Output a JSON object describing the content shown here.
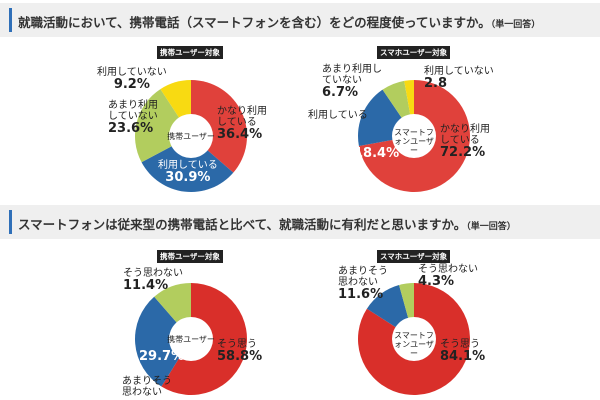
{
  "sections": [
    {
      "title": "就職活動において、携帯電話（スマートフォンを含む）をどの程度使っていますか。",
      "note": "（単一回答）"
    },
    {
      "title": "スマートフォンは従来型の携帯電話と比べて、就職活動に有利だと思いますか。",
      "note": "（単一回答）"
    }
  ],
  "chart_data": [
    {
      "type": "pie",
      "badge": "携帯ユーザー対象",
      "center_label": "携帯ユーザー",
      "slices": [
        {
          "label": "かなり利用している",
          "value": 36.4,
          "display": "36.4%",
          "color": "#e0413b"
        },
        {
          "label": "利用している",
          "value": 30.9,
          "display": "30.9%",
          "color": "#2b69a8"
        },
        {
          "label": "あまり利用していない",
          "value": 23.6,
          "display": "23.6%",
          "color": "#b2cd5e"
        },
        {
          "label": "利用していない",
          "value": 9.2,
          "display": "9.2%",
          "color": "#f8da12"
        }
      ]
    },
    {
      "type": "pie",
      "badge": "スマホユーザー対象",
      "center_label": "スマートフォンユーザー",
      "slices": [
        {
          "label": "かなり利用している",
          "value": 72.2,
          "display": "72.2%",
          "color": "#e0413b"
        },
        {
          "label": "利用している",
          "value": 18.4,
          "display": "18.4%",
          "color": "#2b69a8"
        },
        {
          "label": "あまり利用していない",
          "value": 6.7,
          "display": "6.7%",
          "color": "#b2cd5e"
        },
        {
          "label": "利用していない",
          "value": 2.8,
          "display": "2.8",
          "color": "#f8da12"
        }
      ]
    },
    {
      "type": "pie",
      "badge": "携帯ユーザー対象",
      "center_label": "携帯ユーザー",
      "slices": [
        {
          "label": "そう思う",
          "value": 58.8,
          "display": "58.8%",
          "color": "#d92f2a"
        },
        {
          "label": "あまりそう思わない",
          "value": 29.7,
          "display": "29.7%",
          "color": "#2b69a8"
        },
        {
          "label": "そう思わない",
          "value": 11.4,
          "display": "11.4%",
          "color": "#b2cd5e"
        }
      ]
    },
    {
      "type": "pie",
      "badge": "スマホユーザー対象",
      "center_label": "スマートフォンユーザー",
      "slices": [
        {
          "label": "そう思う",
          "value": 84.1,
          "display": "84.1%",
          "color": "#d92f2a"
        },
        {
          "label": "あまりそう思わない",
          "value": 11.6,
          "display": "11.6%",
          "color": "#2b69a8"
        },
        {
          "label": "そう思わない",
          "value": 4.3,
          "display": "4.3%",
          "color": "#b2cd5e"
        }
      ]
    }
  ]
}
